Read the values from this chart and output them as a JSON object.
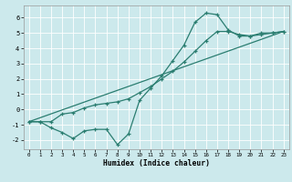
{
  "xlabel": "Humidex (Indice chaleur)",
  "xlim_min": -0.5,
  "xlim_max": 23.5,
  "ylim_min": -2.6,
  "ylim_max": 6.8,
  "xticks": [
    0,
    1,
    2,
    3,
    4,
    5,
    6,
    7,
    8,
    9,
    10,
    11,
    12,
    13,
    14,
    15,
    16,
    17,
    18,
    19,
    20,
    21,
    22,
    23
  ],
  "yticks": [
    -2,
    -1,
    0,
    1,
    2,
    3,
    4,
    5,
    6
  ],
  "bg_color": "#cce9ec",
  "grid_color": "#ffffff",
  "line_color": "#2a7d70",
  "curve1_x": [
    0,
    1,
    2,
    3,
    4,
    5,
    6,
    7,
    8,
    9,
    10,
    11,
    12,
    13,
    14,
    15,
    16,
    17,
    18,
    19,
    20,
    21,
    22,
    23
  ],
  "curve1_y": [
    -0.8,
    -0.8,
    -1.2,
    -1.5,
    -1.9,
    -1.4,
    -1.3,
    -1.3,
    -2.3,
    -1.6,
    0.6,
    1.4,
    2.2,
    3.2,
    4.2,
    5.7,
    6.3,
    6.2,
    5.2,
    4.8,
    4.8,
    5.0,
    5.0,
    5.1
  ],
  "curve2_x": [
    0,
    1,
    2,
    3,
    4,
    5,
    6,
    7,
    8,
    9,
    10,
    11,
    12,
    13,
    14,
    15,
    16,
    17,
    18,
    19,
    20,
    21,
    22,
    23
  ],
  "curve2_y": [
    -0.8,
    -0.8,
    -0.8,
    -0.3,
    -0.2,
    0.1,
    0.3,
    0.4,
    0.5,
    0.7,
    1.1,
    1.5,
    2.0,
    2.5,
    3.1,
    3.8,
    4.5,
    5.1,
    5.1,
    4.9,
    4.8,
    4.9,
    5.0,
    5.1
  ],
  "line3_x": [
    0,
    23
  ],
  "line3_y": [
    -0.8,
    5.1
  ]
}
